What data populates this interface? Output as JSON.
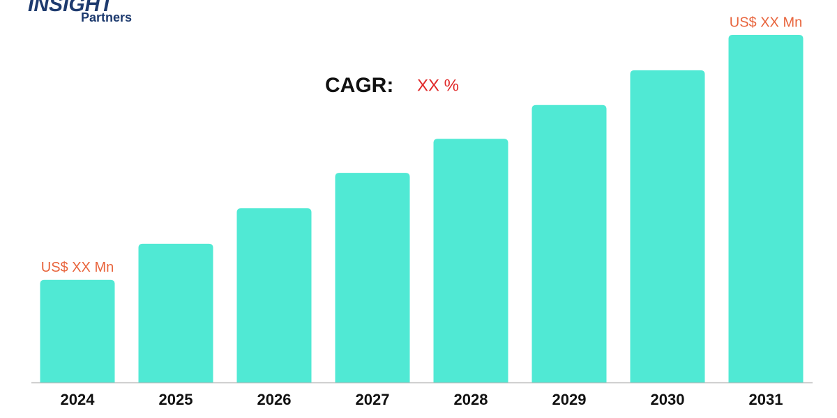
{
  "logo": {
    "name": "INSIGHT",
    "sub": "Partners"
  },
  "chart_data": {
    "type": "bar",
    "annotation": {
      "label": "CAGR:",
      "value": "XX %"
    },
    "categories": [
      "2024",
      "2025",
      "2026",
      "2027",
      "2028",
      "2029",
      "2030",
      "2031"
    ],
    "values": [
      29.5,
      39.9,
      50.1,
      60.3,
      70.1,
      79.8,
      89.8,
      100
    ],
    "value_labels": [
      "US$ XX Mn",
      null,
      null,
      null,
      null,
      null,
      null,
      "US$ XX Mn"
    ],
    "color": "#50e9d4",
    "ylim": [
      0,
      100
    ]
  }
}
